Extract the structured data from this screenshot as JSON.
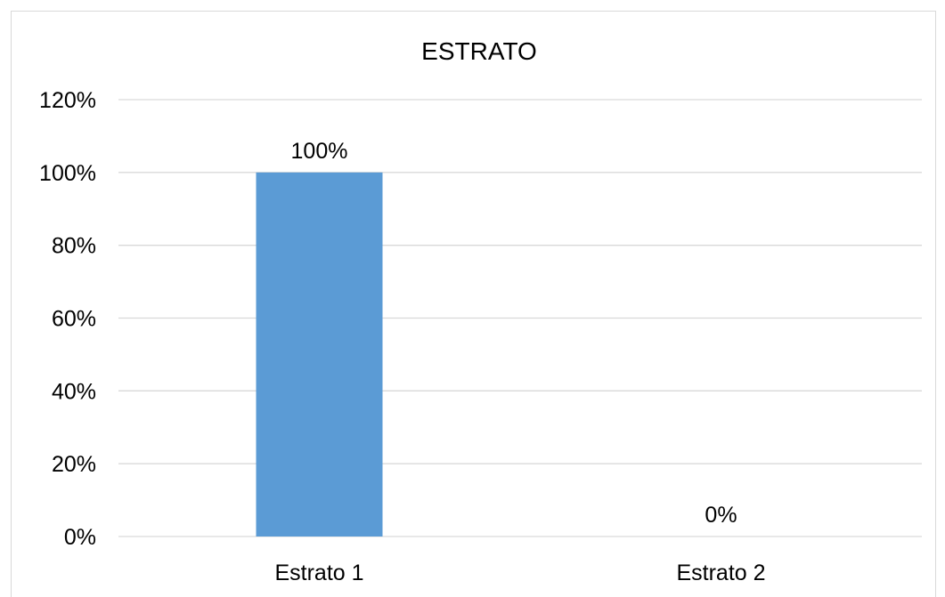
{
  "chart_data": {
    "type": "bar",
    "title": "ESTRATO",
    "xlabel": "",
    "ylabel": "",
    "categories": [
      "Estrato 1",
      "Estrato 2"
    ],
    "values": [
      100,
      0
    ],
    "data_labels": [
      "100%",
      "0%"
    ],
    "ylim": [
      0,
      120
    ],
    "yticks": [
      0,
      20,
      40,
      60,
      80,
      100,
      120
    ],
    "ytick_labels": [
      "0%",
      "20%",
      "40%",
      "60%",
      "80%",
      "100%",
      "120%"
    ],
    "grid": true,
    "legend": "none",
    "bar_color": "#5b9bd5",
    "grid_color": "#d9d9d9"
  }
}
